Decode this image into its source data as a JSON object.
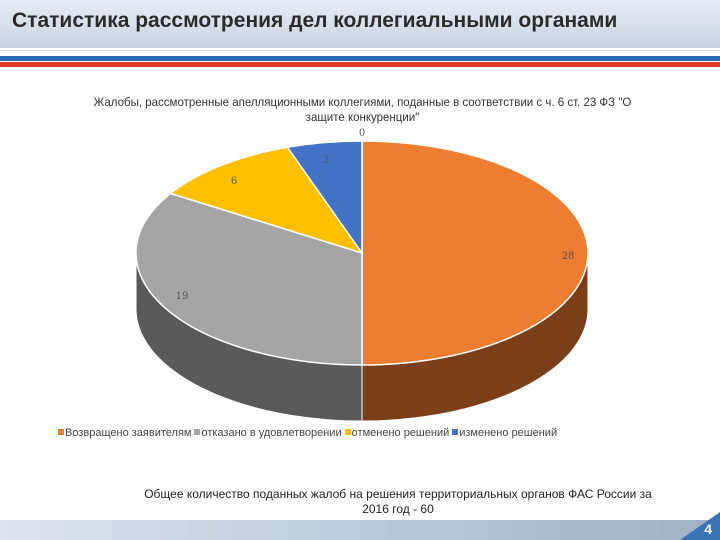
{
  "slide": {
    "title": "Статистика рассмотрения дел коллегиальными органами",
    "page_number": "4",
    "note": "Общее количество поданных жалоб на решения территориальных органов ФАС России за 2016 год - 60"
  },
  "chart_data": {
    "type": "pie",
    "title": "Жалобы, рассмотренные апелляционными коллегиями, поданные в соответствии с ч. 6 ст. 23 ФЗ \"О защите конкуренции\"",
    "legend_position": "bottom",
    "categories": [
      "Возвращено заявителям",
      "отказано в удовлетворении",
      "отменено решений",
      "изменено решений"
    ],
    "values": [
      28,
      19,
      6,
      3
    ],
    "extra_label": "0",
    "colors": [
      "#ed7d31",
      "#a5a5a5",
      "#ffc000",
      "#4472c4"
    ],
    "side_colors": [
      "#7a3f18",
      "#595959",
      "#8a6800",
      "#254a85"
    ]
  }
}
